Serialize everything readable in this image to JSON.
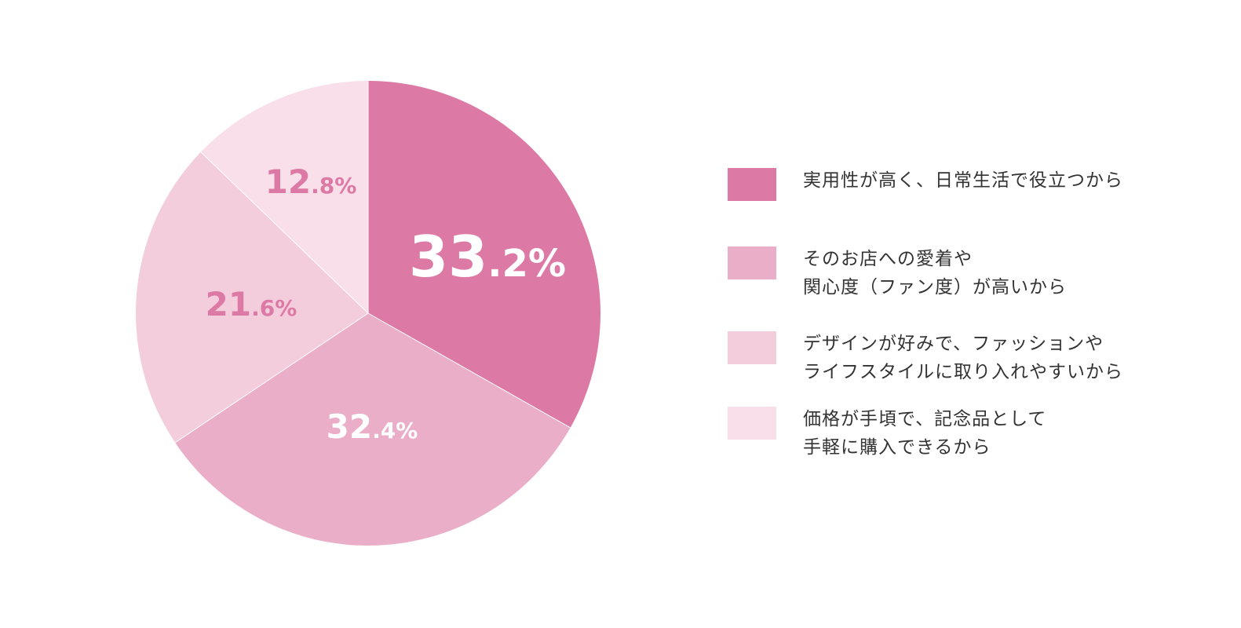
{
  "chart_data": {
    "type": "pie",
    "title": "",
    "slices": [
      {
        "label_lines": [
          "実用性が高く、日常生活で役立つから"
        ],
        "value": 33.2,
        "value_main": "33",
        "value_frac": ".2%",
        "color": "#dd79a5",
        "label_color": "#ffffff"
      },
      {
        "label_lines": [
          "そのお店への愛着や",
          "関心度（ファン度）が高いから"
        ],
        "value": 32.4,
        "value_main": "32",
        "value_frac": ".4%",
        "color": "#eaaec8",
        "label_color": "#ffffff"
      },
      {
        "label_lines": [
          "デザインが好みで、ファッションや",
          "ライフスタイルに取り入れやすいから"
        ],
        "value": 21.6,
        "value_main": "21",
        "value_frac": ".6%",
        "color": "#f4cddd",
        "label_color": "#dd79a5"
      },
      {
        "label_lines": [
          "価格が手頃で、記念品として",
          "手軽に購入できるから"
        ],
        "value": 12.8,
        "value_main": "12",
        "value_frac": ".8%",
        "color": "#f8dfea",
        "label_color": "#dd79a5"
      }
    ],
    "start_angle": "12-o'clock",
    "direction": "clockwise",
    "legend_position": "right"
  }
}
